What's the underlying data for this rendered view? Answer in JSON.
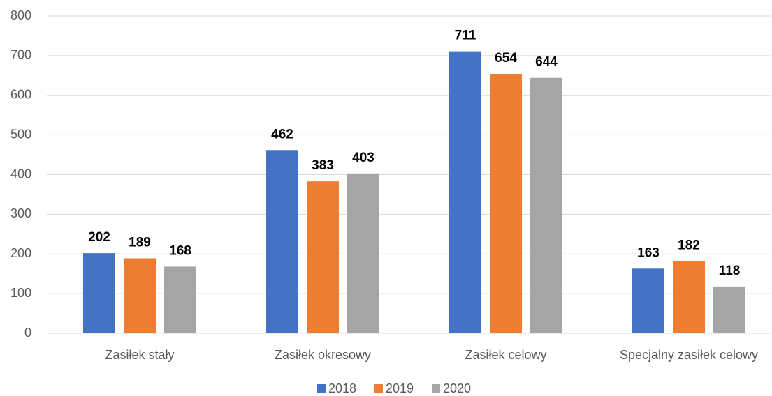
{
  "chart_data": {
    "type": "bar",
    "categories": [
      "Zasiłek stały",
      "Zasiłek okresowy",
      "Zasiłek celowy",
      "Specjalny zasiłek celowy"
    ],
    "series": [
      {
        "name": "2018",
        "color": "#4472c4",
        "values": [
          202,
          462,
          711,
          163
        ]
      },
      {
        "name": "2019",
        "color": "#ed7d31",
        "values": [
          189,
          383,
          654,
          182
        ]
      },
      {
        "name": "2020",
        "color": "#a5a5a5",
        "values": [
          168,
          403,
          644,
          118
        ]
      }
    ],
    "ylim": [
      0,
      800
    ],
    "yticks": [
      0,
      100,
      200,
      300,
      400,
      500,
      600,
      700,
      800
    ],
    "grid": true,
    "legend": "bottom"
  }
}
